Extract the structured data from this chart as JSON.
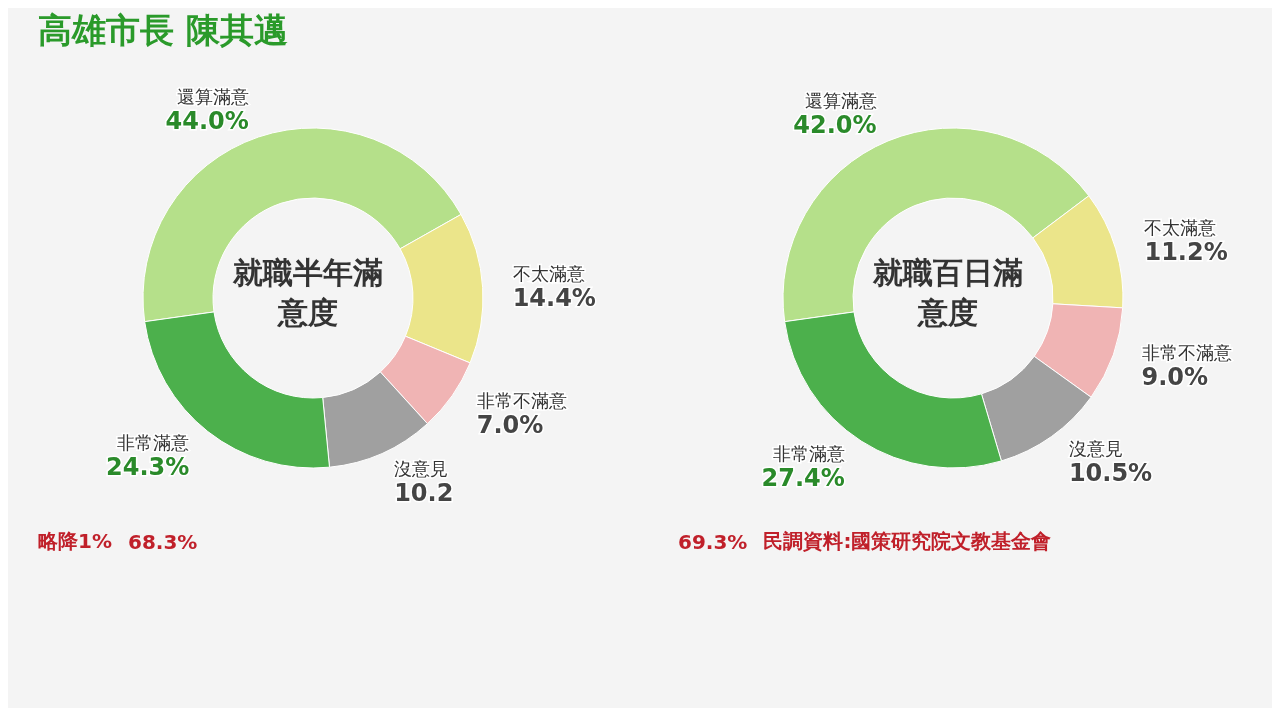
{
  "chart_data": [
    {
      "type": "donut",
      "title": "高雄市長 陳其邁",
      "categories": [
        "還算滿意",
        "不太滿意",
        "非常不滿意",
        "沒意見",
        "非常滿意"
      ],
      "values": [
        44.0,
        14.4,
        7.0,
        10.2,
        24.3
      ],
      "value_labels": [
        "44.0%",
        "14.4%",
        "7.0%",
        "10.2",
        "24.3%"
      ],
      "colors": [
        "#b5e08a",
        "#ebe58a",
        "#f0b4b4",
        "#a0a0a0",
        "#4cb04c"
      ],
      "legend": false,
      "annotations": [
        "就職半年滿意度",
        "略降1%",
        "68.3%"
      ]
    },
    {
      "type": "donut",
      "categories": [
        "還算滿意",
        "不太滿意",
        "非常不滿意",
        "沒意見",
        "非常滿意"
      ],
      "values": [
        42.0,
        11.2,
        9.0,
        10.5,
        27.4
      ],
      "value_labels": [
        "42.0%",
        "11.2%",
        "9.0%",
        "10.5%",
        "27.4%"
      ],
      "colors": [
        "#b5e08a",
        "#ebe58a",
        "#f0b4b4",
        "#a0a0a0",
        "#4cb04c"
      ],
      "legend": false,
      "annotations": [
        "就職百日滿意度",
        "69.3%",
        "民調資料:國策研究院文教基金會"
      ]
    }
  ]
}
